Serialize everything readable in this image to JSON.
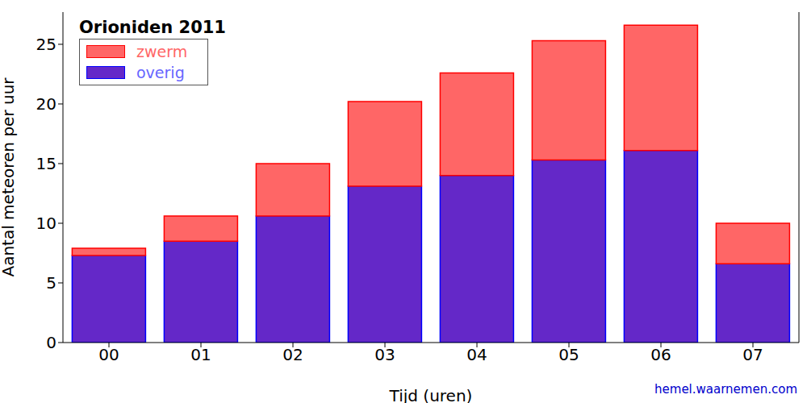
{
  "chart_data": {
    "type": "bar",
    "title": "Orioniden 2011",
    "x_label": "Tijd (uren)",
    "y_label": "Aantal meteoren per uur",
    "annotation": "hemel.waarnemen.com",
    "categories": [
      "00",
      "01",
      "02",
      "03",
      "04",
      "05",
      "06",
      "07"
    ],
    "series": [
      {
        "name": "zwerm",
        "color": "#ff6666",
        "values": [
          0.6,
          2.1,
          4.4,
          7.1,
          8.6,
          10.0,
          10.5,
          3.4
        ]
      },
      {
        "name": "overig",
        "color": "#6428c8",
        "values": [
          7.3,
          8.5,
          10.6,
          13.1,
          14.0,
          15.3,
          16.1,
          6.6
        ]
      }
    ],
    "stacked": true,
    "ylim": [
      0,
      27.7
    ],
    "yticks": [
      0,
      5,
      10,
      15,
      20,
      25
    ],
    "grid": false,
    "legend": "upper left"
  }
}
